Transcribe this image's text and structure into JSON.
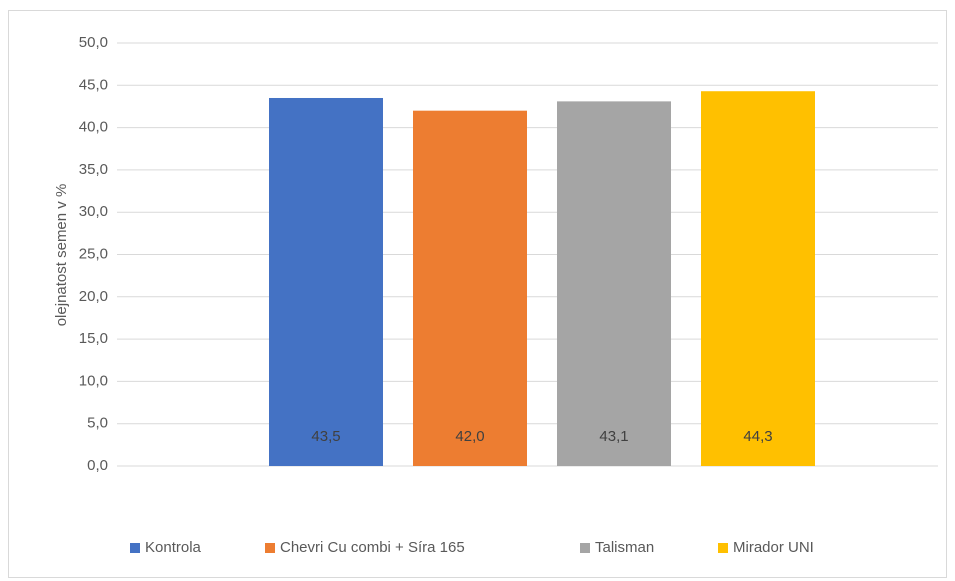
{
  "chart_data": {
    "type": "bar",
    "y_label": "olejnatost semen v %",
    "categories": [
      null
    ],
    "series": [
      {
        "name": "Kontrola",
        "color": "#4472c4",
        "values": [
          43.5
        ],
        "value_labels": [
          "43,5"
        ]
      },
      {
        "name": "Chevri Cu combi + Síra 165",
        "color": "#ed7d31",
        "values": [
          42.0
        ],
        "value_labels": [
          "42,0"
        ]
      },
      {
        "name": "Talisman",
        "color": "#a5a5a5",
        "values": [
          43.1
        ],
        "value_labels": [
          "43,1"
        ]
      },
      {
        "name": "Mirador UNI",
        "color": "#ffc000",
        "values": [
          44.3
        ],
        "value_labels": [
          "44,3"
        ]
      }
    ],
    "ylim": [
      0,
      50
    ],
    "yticks": [
      {
        "value": 0,
        "label": "0,0"
      },
      {
        "value": 5,
        "label": "5,0"
      },
      {
        "value": 10,
        "label": "10,0"
      },
      {
        "value": 15,
        "label": "15,0"
      },
      {
        "value": 20,
        "label": "20,0"
      },
      {
        "value": 25,
        "label": "25,0"
      },
      {
        "value": 30,
        "label": "30,0"
      },
      {
        "value": 35,
        "label": "35,0"
      },
      {
        "value": 40,
        "label": "40,0"
      },
      {
        "value": 45,
        "label": "45,0"
      },
      {
        "value": 50,
        "label": "50,0"
      }
    ],
    "grid": true,
    "legend": "bottom"
  }
}
